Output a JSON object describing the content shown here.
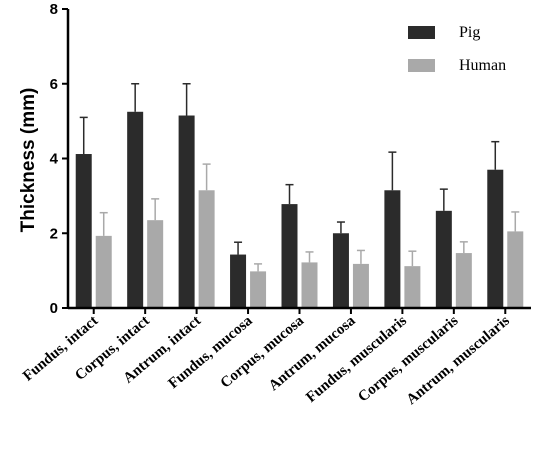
{
  "chart_data": {
    "type": "bar",
    "title": "",
    "xlabel": "",
    "ylabel": "Thickness (mm)",
    "ylim": [
      0,
      8
    ],
    "yticks": [
      "0",
      "2",
      "4",
      "6",
      "8"
    ],
    "grid": false,
    "legend_position": "top-right",
    "categories": [
      "Fundus, intact",
      "Corpus, intact",
      "Antrum, intact",
      "Fundus, mucosa",
      "Corpus, mucosa",
      "Antrum, mucosa",
      "Fundus, muscularis",
      "Corpus, muscularis",
      "Antrum, muscularis"
    ],
    "series": [
      {
        "name": "Pig",
        "color": "#2b2b2b",
        "values": [
          4.12,
          5.25,
          5.15,
          1.43,
          2.78,
          2.0,
          3.15,
          2.6,
          3.7
        ],
        "errors": [
          0.98,
          0.75,
          0.85,
          0.33,
          0.52,
          0.3,
          1.02,
          0.58,
          0.75
        ]
      },
      {
        "name": "Human",
        "color": "#a9a9a9",
        "values": [
          1.93,
          2.35,
          3.15,
          0.98,
          1.22,
          1.18,
          1.12,
          1.47,
          2.05
        ],
        "errors": [
          0.62,
          0.57,
          0.7,
          0.2,
          0.28,
          0.36,
          0.4,
          0.3,
          0.52
        ]
      }
    ]
  }
}
